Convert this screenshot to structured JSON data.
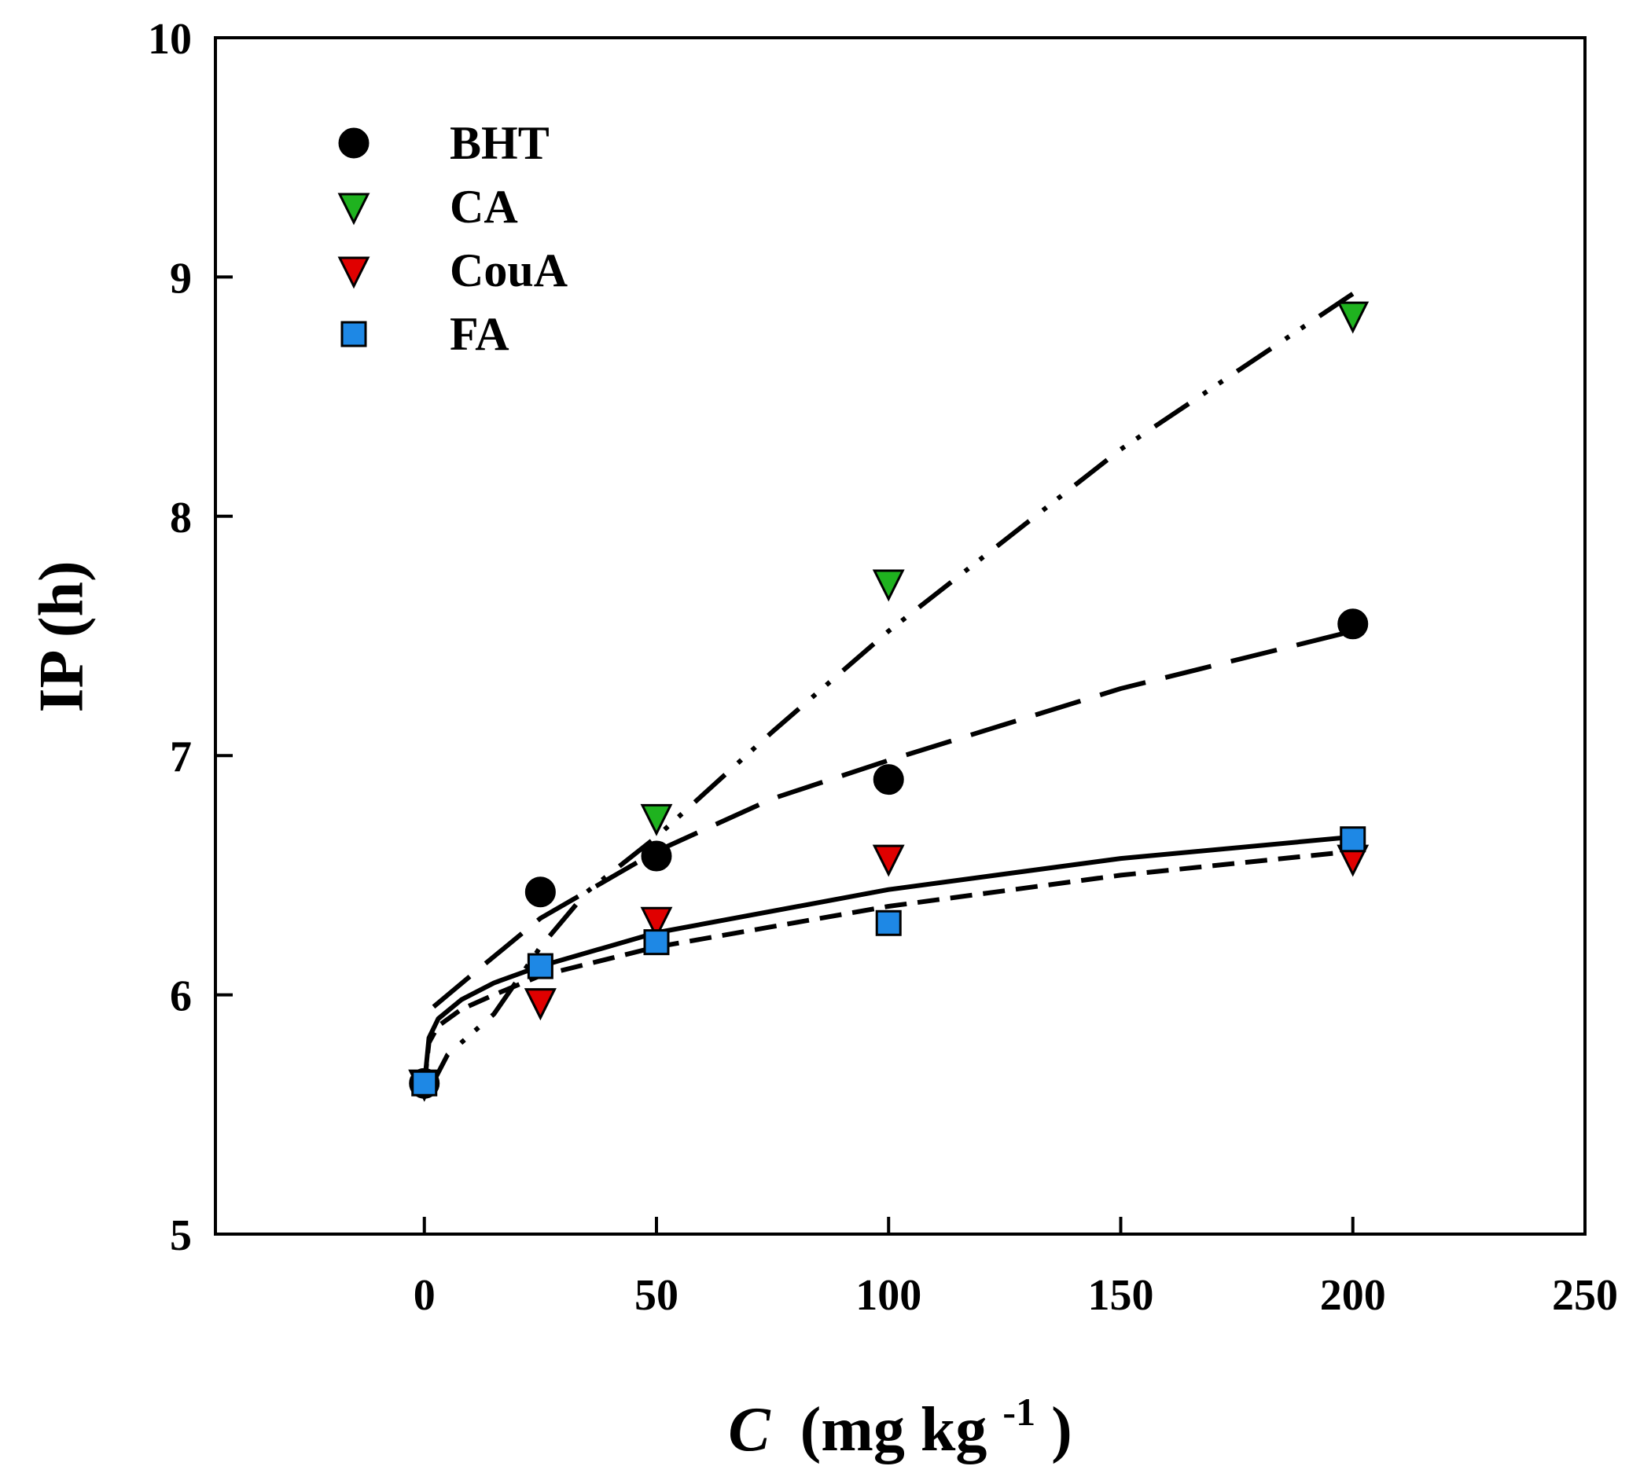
{
  "chart_data": {
    "type": "scatter",
    "title": "",
    "xlabel_italic": "C",
    "xlabel_units": "(mg kg",
    "xlabel_sup": "-1",
    "xlabel_close": ")",
    "ylabel": "IP (h)",
    "xlim": [
      -45,
      250
    ],
    "ylim": [
      5,
      10
    ],
    "xticks": [
      0,
      50,
      100,
      150,
      200,
      250
    ],
    "yticks": [
      5,
      6,
      7,
      8,
      9,
      10
    ],
    "xtick_labels": [
      "0",
      "50",
      "100",
      "150",
      "200",
      "250"
    ],
    "ytick_labels": [
      "5",
      "6",
      "7",
      "8",
      "9",
      "10"
    ],
    "grid": false,
    "legend_position": "top-left",
    "series": [
      {
        "name": "BHT",
        "marker": "circle",
        "color": "#000000",
        "x": [
          0,
          25,
          50,
          100,
          200
        ],
        "y": [
          5.63,
          6.43,
          6.58,
          6.9,
          7.55
        ],
        "fit_style": "long-dash",
        "fit": [
          [
            2,
            5.95
          ],
          [
            10,
            6.08
          ],
          [
            25,
            6.32
          ],
          [
            50,
            6.6
          ],
          [
            75,
            6.82
          ],
          [
            100,
            6.98
          ],
          [
            150,
            7.28
          ],
          [
            200,
            7.52
          ]
        ]
      },
      {
        "name": "CA",
        "marker": "triangle-down",
        "color": "#1fb21f",
        "x": [
          0,
          25,
          50,
          100,
          200
        ],
        "y": [
          5.63,
          5.97,
          6.74,
          7.72,
          8.84
        ],
        "fit_style": "dash-dot-dot",
        "fit": [
          [
            1,
            5.6
          ],
          [
            5,
            5.75
          ],
          [
            15,
            5.92
          ],
          [
            25,
            6.2
          ],
          [
            35,
            6.43
          ],
          [
            50,
            6.66
          ],
          [
            75,
            7.1
          ],
          [
            100,
            7.52
          ],
          [
            150,
            8.28
          ],
          [
            200,
            8.93
          ]
        ]
      },
      {
        "name": "CouA",
        "marker": "triangle-down",
        "color": "#e00000",
        "x": [
          0,
          25,
          50,
          100,
          200
        ],
        "y": [
          5.63,
          5.97,
          6.31,
          6.57,
          6.57
        ],
        "fit_style": "short-dash",
        "fit": [
          [
            0,
            5.62
          ],
          [
            1,
            5.8
          ],
          [
            3,
            5.87
          ],
          [
            8,
            5.94
          ],
          [
            15,
            6.0
          ],
          [
            25,
            6.08
          ],
          [
            50,
            6.2
          ],
          [
            100,
            6.37
          ],
          [
            150,
            6.5
          ],
          [
            200,
            6.6
          ]
        ]
      },
      {
        "name": "FA",
        "marker": "square",
        "color": "#1e88e5",
        "x": [
          0,
          25,
          50,
          100,
          200
        ],
        "y": [
          5.63,
          6.12,
          6.22,
          6.3,
          6.65
        ],
        "fit_style": "solid",
        "fit": [
          [
            0,
            5.62
          ],
          [
            1,
            5.82
          ],
          [
            3,
            5.9
          ],
          [
            8,
            5.98
          ],
          [
            15,
            6.05
          ],
          [
            25,
            6.12
          ],
          [
            50,
            6.26
          ],
          [
            100,
            6.44
          ],
          [
            150,
            6.57
          ],
          [
            200,
            6.66
          ]
        ]
      }
    ]
  }
}
